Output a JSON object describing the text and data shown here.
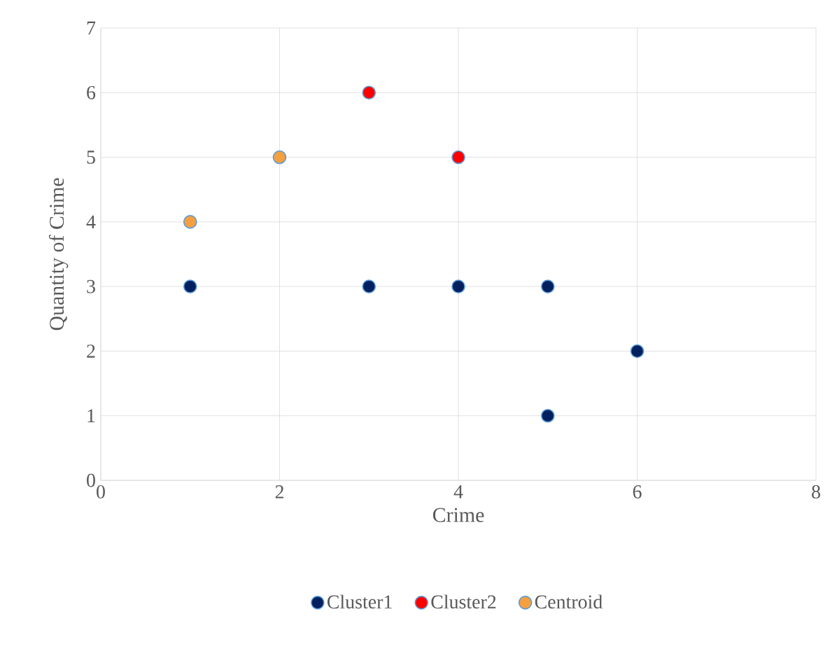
{
  "chart_data": {
    "type": "scatter",
    "xlabel": "Crime",
    "ylabel": "Quantity of Crime",
    "series": [
      {
        "name": "Cluster1",
        "color": "#002060",
        "x": [
          1,
          3,
          4,
          5,
          5,
          6
        ],
        "values": [
          3,
          3,
          3,
          3,
          1,
          2
        ]
      },
      {
        "name": "Cluster2",
        "color": "#ff0000",
        "x": [
          3,
          4
        ],
        "values": [
          6,
          5
        ]
      },
      {
        "name": "Centroid",
        "color": "#f4a040",
        "x": [
          1,
          2
        ],
        "values": [
          4,
          5
        ]
      }
    ],
    "xlim": [
      0,
      8
    ],
    "xticks": [
      0,
      2,
      4,
      6,
      8
    ],
    "ylim": [
      0,
      7
    ],
    "yticks": [
      0,
      1,
      2,
      3,
      4,
      5,
      6,
      7
    ],
    "grid": true,
    "legend": "bottom",
    "marker": "circle"
  }
}
